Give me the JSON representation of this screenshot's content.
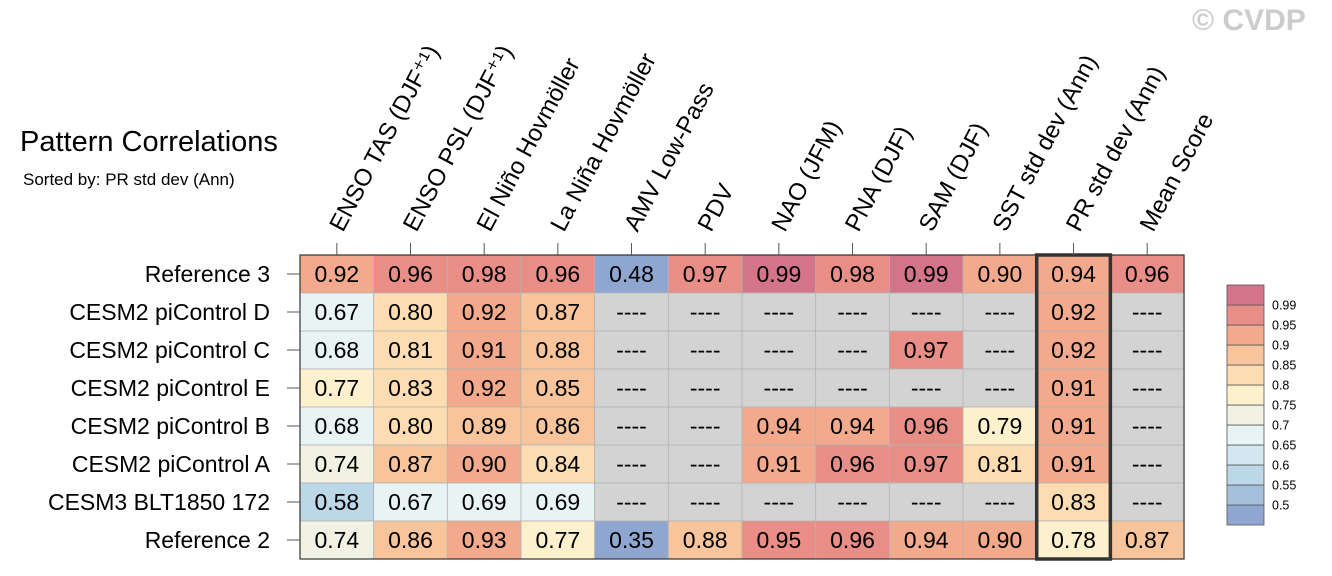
{
  "title": "Pattern Correlations",
  "subtitle": "Sorted by: PR std dev (Ann)",
  "watermark": "© CVDP",
  "chart_data": {
    "type": "heatmap",
    "title": "Pattern Correlations",
    "subtitle": "Sorted by: PR std dev (Ann)",
    "columns": [
      "ENSO TAS (DJF⁺¹)",
      "ENSO PSL (DJF⁺¹)",
      "El Niño Hovmöller",
      "La Niña Hovmöller",
      "AMV Low-Pass",
      "PDV",
      "NAO (JFM)",
      "PNA (DJF)",
      "SAM (DJF)",
      "SST std dev (Ann)",
      "PR std dev (Ann)",
      "Mean Score"
    ],
    "rows": [
      "Reference 3",
      "CESM2 piControl D",
      "CESM2 piControl C",
      "CESM2 piControl E",
      "CESM2 piControl B",
      "CESM2 piControl A",
      "CESM3 BLT1850 172",
      "Reference 2"
    ],
    "values": [
      [
        0.92,
        0.96,
        0.98,
        0.96,
        0.48,
        0.97,
        0.99,
        0.98,
        0.99,
        0.9,
        0.94,
        0.96
      ],
      [
        0.67,
        0.8,
        0.92,
        0.87,
        null,
        null,
        null,
        null,
        null,
        null,
        0.92,
        null
      ],
      [
        0.68,
        0.81,
        0.91,
        0.88,
        null,
        null,
        null,
        null,
        0.97,
        null,
        0.92,
        null
      ],
      [
        0.77,
        0.83,
        0.92,
        0.85,
        null,
        null,
        null,
        null,
        null,
        null,
        0.91,
        null
      ],
      [
        0.68,
        0.8,
        0.89,
        0.86,
        null,
        null,
        0.94,
        0.94,
        0.96,
        0.79,
        0.91,
        null
      ],
      [
        0.74,
        0.87,
        0.9,
        0.84,
        null,
        null,
        0.91,
        0.96,
        0.97,
        0.81,
        0.91,
        null
      ],
      [
        0.58,
        0.67,
        0.69,
        0.69,
        null,
        null,
        null,
        null,
        null,
        null,
        0.83,
        null
      ],
      [
        0.74,
        0.86,
        0.93,
        0.77,
        0.35,
        0.88,
        0.95,
        0.96,
        0.94,
        0.9,
        0.78,
        0.87
      ]
    ],
    "missing_label": "----",
    "missing_color": "#d3d3d3",
    "highlighted_column": "PR std dev (Ann)",
    "colorbar": {
      "placement": "right",
      "levels": [
        0.5,
        0.55,
        0.6,
        0.65,
        0.7,
        0.75,
        0.8,
        0.85,
        0.9,
        0.95,
        0.99
      ],
      "labels": [
        "0.5",
        "0.55",
        "0.6",
        "0.65",
        "0.7",
        "0.75",
        "0.8",
        "0.85",
        "0.9",
        "0.95",
        "0.99"
      ],
      "colors": [
        "#8fa6d0",
        "#a6c0dc",
        "#bcd7e7",
        "#d3e7f0",
        "#e8f3f4",
        "#f1f1e4",
        "#fdf0cc",
        "#fcdcb0",
        "#f7c49b",
        "#f2a98c",
        "#e88e87",
        "#d47489"
      ]
    }
  }
}
